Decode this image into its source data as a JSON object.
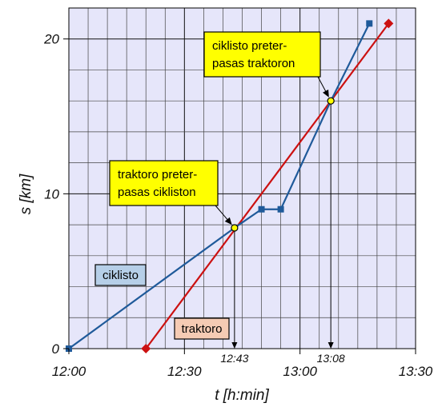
{
  "chart_data": {
    "type": "line",
    "xlabel": "t [h:min]",
    "ylabel": "s [km]",
    "x_ticks": [
      "12:00",
      "12:30",
      "13:00",
      "13:30"
    ],
    "y_ticks": [
      "0",
      "10",
      "20"
    ],
    "xlim": [
      "12:00",
      "13:30"
    ],
    "ylim": [
      0,
      22
    ],
    "grid": true,
    "background_color": "#e6e6fa",
    "series": [
      {
        "name": "ciklisto",
        "color": "#1f5a9a",
        "label_bg": "#b6cfe8",
        "marker": "square",
        "points": [
          {
            "t": "12:00",
            "s": 0
          },
          {
            "t": "12:43",
            "s": 7.8
          },
          {
            "t": "12:50",
            "s": 9
          },
          {
            "t": "12:55",
            "s": 9
          },
          {
            "t": "13:08",
            "s": 16
          },
          {
            "t": "13:18",
            "s": 21
          }
        ]
      },
      {
        "name": "traktoro",
        "color": "#cc1111",
        "label_bg": "#f5cbb4",
        "marker": "diamond",
        "points": [
          {
            "t": "12:20",
            "s": 0
          },
          {
            "t": "13:23",
            "s": 21
          }
        ]
      }
    ],
    "crossings": [
      {
        "t": "12:43",
        "s": 7.8,
        "label": "12:43"
      },
      {
        "t": "13:08",
        "s": 16,
        "label": "13:08"
      }
    ],
    "annotations": [
      {
        "lines": [
          "traktoro preter-",
          "pasas cikliston"
        ],
        "target": 0,
        "bg": "#ffff00"
      },
      {
        "lines": [
          "ciklisto preter-",
          "pasas traktoron"
        ],
        "target": 1,
        "bg": "#ffff00"
      }
    ]
  }
}
